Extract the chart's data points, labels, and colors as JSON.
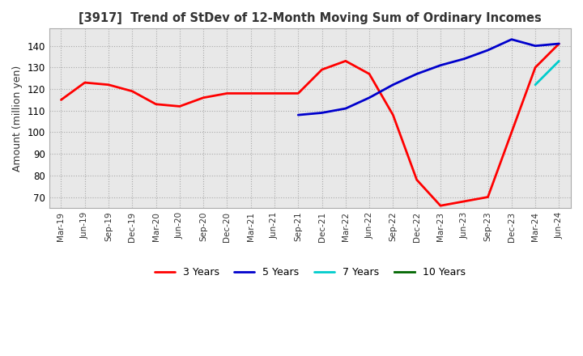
{
  "title": "[3917]  Trend of StDev of 12-Month Moving Sum of Ordinary Incomes",
  "ylabel": "Amount (million yen)",
  "ylim": [
    65,
    148
  ],
  "yticks": [
    70,
    80,
    90,
    100,
    110,
    120,
    130,
    140
  ],
  "legend_labels": [
    "3 Years",
    "5 Years",
    "7 Years",
    "10 Years"
  ],
  "legend_colors": [
    "#ff0000",
    "#0000cc",
    "#00cccc",
    "#006600"
  ],
  "x_labels": [
    "Mar-19",
    "Jun-19",
    "Sep-19",
    "Dec-19",
    "Mar-20",
    "Jun-20",
    "Sep-20",
    "Dec-20",
    "Mar-21",
    "Jun-21",
    "Sep-21",
    "Dec-21",
    "Mar-22",
    "Jun-22",
    "Sep-22",
    "Dec-22",
    "Mar-23",
    "Jun-23",
    "Sep-23",
    "Dec-23",
    "Mar-24",
    "Jun-24"
  ],
  "series_3y": [
    115,
    123,
    122,
    119,
    113,
    112,
    116,
    118,
    118,
    118,
    118,
    129,
    133,
    127,
    108,
    78,
    66,
    68,
    70,
    100,
    130,
    141
  ],
  "series_5y": [
    null,
    null,
    null,
    null,
    null,
    null,
    null,
    null,
    null,
    null,
    108,
    109,
    111,
    116,
    122,
    127,
    131,
    134,
    138,
    143,
    140,
    141
  ],
  "series_7y": [
    null,
    null,
    null,
    null,
    null,
    null,
    null,
    null,
    null,
    null,
    null,
    null,
    null,
    null,
    null,
    null,
    null,
    null,
    null,
    null,
    122,
    133
  ],
  "series_10y": []
}
